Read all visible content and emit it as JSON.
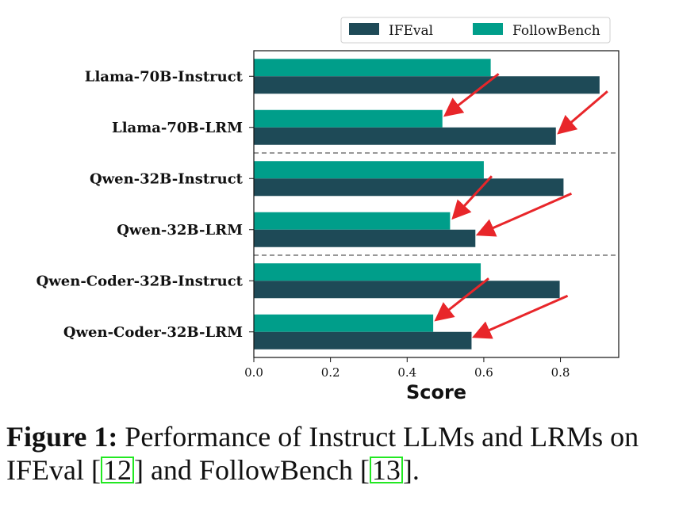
{
  "chart_data": {
    "type": "bar",
    "orientation": "horizontal",
    "categories": [
      "Llama-70B-Instruct",
      "Llama-70B-LRM",
      "Qwen-32B-Instruct",
      "Qwen-32B-LRM",
      "Qwen-Coder-32B-Instruct",
      "Qwen-Coder-32B-LRM"
    ],
    "series": [
      {
        "name": "IFEval",
        "color": "#1e4a57",
        "values": [
          0.902,
          0.788,
          0.808,
          0.578,
          0.798,
          0.568
        ]
      },
      {
        "name": "FollowBench",
        "color": "#009e8a",
        "values": [
          0.618,
          0.492,
          0.6,
          0.512,
          0.592,
          0.468
        ]
      }
    ],
    "xlabel": "Score",
    "ylabel": "",
    "xlim": [
      0,
      0.952
    ],
    "xticks": [
      "0.0",
      "0.2",
      "0.4",
      "0.6",
      "0.8"
    ],
    "xtick_values": [
      0,
      0.2,
      0.4,
      0.6,
      0.8
    ],
    "group_separators_after": [
      1,
      3
    ],
    "legend_position": "top",
    "grid": false,
    "annotations": "red arrows pointing from Instruct bars down to corresponding LRM bars",
    "arrow_color": "#e8262a"
  },
  "caption": {
    "label": "Figure 1:",
    "text1": " Performance of Instruct LLMs and LRMs on IFEval [",
    "ref1": "12",
    "text2": "] and FollowBench [",
    "ref2": "13",
    "text3": "]."
  }
}
